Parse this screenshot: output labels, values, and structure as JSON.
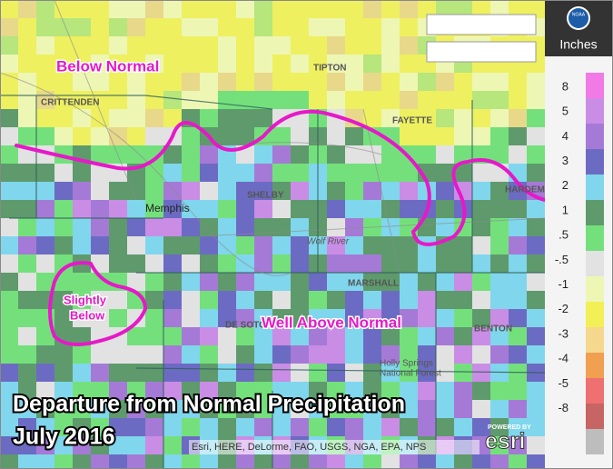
{
  "annotations": {
    "below_normal": "Below Normal",
    "slightly_below": [
      "Slightly",
      "Below"
    ],
    "well_above_normal": "Well Above Normal"
  },
  "title": {
    "line1": "Departure from Normal Precipitation",
    "line2": "July 2016"
  },
  "legend": {
    "logo": "NOAA",
    "unit": "Inches",
    "labels": [
      "8",
      "5",
      "4",
      "3",
      "2",
      "1",
      ".5",
      "-.5",
      "-1",
      "-2",
      "-3",
      "-4",
      "-5",
      "-8"
    ]
  },
  "places": {
    "tipton": "TIPTON",
    "crittenden": "CRITTENDEN",
    "fayette": "FAYETTE",
    "shelby": "SHELBY",
    "memphis": "Memphis",
    "marshall": "MARSHALL",
    "de_soto": "DE SOTO",
    "benton": "BENTON",
    "hardeman": "HARDEM",
    "holly_springs": [
      "Holly Springs",
      "National Forest"
    ],
    "wolf_river": "Wolf River"
  },
  "attribution": "Esri, HERE, DeLorme, FAO, USGS, NGA, EPA, NPS",
  "esri": {
    "powered_by": "POWERED BY",
    "brand": "esri"
  },
  "help": "?"
}
